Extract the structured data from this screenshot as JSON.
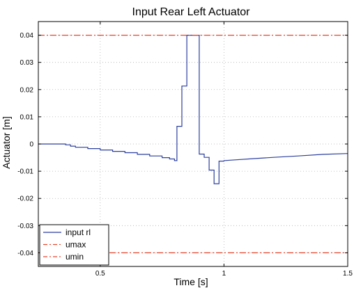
{
  "chart_data": {
    "type": "line",
    "title": "Input Rear Left Actuator",
    "xlabel": "Time [s]",
    "ylabel": "Actuator [m]",
    "xlim": [
      0.25,
      1.5
    ],
    "ylim": [
      -0.045,
      0.045
    ],
    "xticks": [
      0.5,
      1,
      1.5
    ],
    "xtick_labels": [
      "0.5",
      "1",
      "1.5"
    ],
    "yticks": [
      0.04,
      0.03,
      0.02,
      0.01,
      0,
      -0.01,
      -0.02,
      -0.03,
      -0.04
    ],
    "ytick_labels": [
      "0.04",
      "0.03",
      "0.02",
      "0.01",
      "0",
      "-0.01",
      "-0.02",
      "-0.03",
      "-0.04"
    ],
    "grid": true,
    "legend_position": "bottom-left",
    "series": [
      {
        "name": "input rl",
        "color": "#2b3f9e",
        "style": "solid",
        "x": [
          0.25,
          0.36,
          0.36,
          0.38,
          0.38,
          0.4,
          0.4,
          0.45,
          0.45,
          0.5,
          0.5,
          0.55,
          0.55,
          0.6,
          0.6,
          0.65,
          0.65,
          0.7,
          0.7,
          0.75,
          0.75,
          0.78,
          0.78,
          0.8,
          0.8,
          0.81,
          0.81,
          0.83,
          0.83,
          0.85,
          0.85,
          0.9,
          0.9,
          0.92,
          0.92,
          0.94,
          0.94,
          0.96,
          0.96,
          0.98,
          0.98,
          1.0,
          1.0,
          1.05,
          1.1,
          1.2,
          1.3,
          1.4,
          1.5
        ],
        "y": [
          0,
          0,
          -0.0003,
          -0.0003,
          -0.0008,
          -0.0008,
          -0.0012,
          -0.0012,
          -0.0017,
          -0.0017,
          -0.0022,
          -0.0022,
          -0.0027,
          -0.0027,
          -0.0032,
          -0.0032,
          -0.0038,
          -0.0038,
          -0.0044,
          -0.0044,
          -0.005,
          -0.005,
          -0.0055,
          -0.0055,
          -0.0061,
          -0.0061,
          0.0065,
          0.0065,
          0.0213,
          0.0213,
          0.04,
          0.04,
          -0.0037,
          -0.0037,
          -0.0049,
          -0.0049,
          -0.0096,
          -0.0096,
          -0.0146,
          -0.0146,
          -0.0063,
          -0.0063,
          -0.0061,
          -0.0058,
          -0.0055,
          -0.0049,
          -0.0044,
          -0.0038,
          -0.0035
        ]
      },
      {
        "name": "umax",
        "color": "#e8452c",
        "style": "dashdot",
        "x": [
          0.25,
          1.5
        ],
        "y": [
          0.04,
          0.04
        ]
      },
      {
        "name": "umin",
        "color": "#e8452c",
        "style": "dashdot",
        "x": [
          0.25,
          1.5
        ],
        "y": [
          -0.04,
          -0.04
        ]
      }
    ]
  }
}
